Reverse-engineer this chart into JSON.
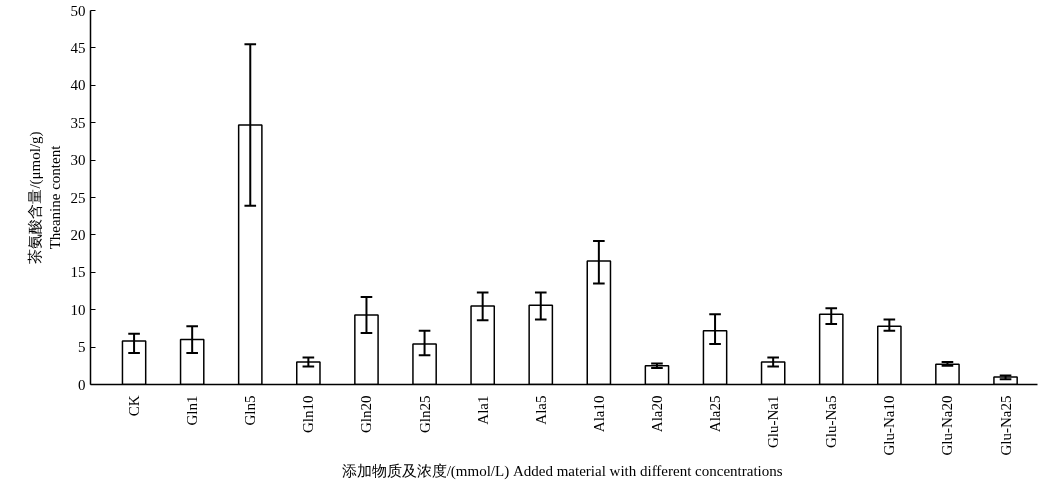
{
  "chart_data": {
    "type": "bar",
    "xlabel": "添加物质及浓度/(mmol/L)  Added material with different concentrations",
    "ylabel": "茶氨酸含量/(μmol/g)\nTheanine content",
    "categories": [
      "CK",
      "Gln1",
      "Gln5",
      "Gln10",
      "Gln20",
      "Gln25",
      "Ala1",
      "Ala5",
      "Ala10",
      "Ala20",
      "Ala25",
      "Glu-Na1",
      "Glu-Na5",
      "Glu-Na10",
      "Glu-Na20",
      "Glu-Na25"
    ],
    "values": [
      5.8,
      6.0,
      34.7,
      3.0,
      9.3,
      5.4,
      10.5,
      10.6,
      16.5,
      2.5,
      7.2,
      3.0,
      9.4,
      7.8,
      2.7,
      1.0
    ],
    "errors": [
      [
        4.2,
        6.8
      ],
      [
        4.2,
        7.8
      ],
      [
        23.9,
        45.5
      ],
      [
        2.4,
        3.6
      ],
      [
        6.9,
        11.7
      ],
      [
        3.9,
        7.2
      ],
      [
        8.6,
        12.3
      ],
      [
        8.7,
        12.3
      ],
      [
        13.5,
        19.2
      ],
      [
        2.2,
        2.8
      ],
      [
        5.4,
        9.4
      ],
      [
        2.4,
        3.6
      ],
      [
        8.1,
        10.2
      ],
      [
        7.2,
        8.7
      ],
      [
        2.5,
        3.0
      ],
      [
        0.7,
        1.2
      ]
    ],
    "color": "#ffffff",
    "ylim": [
      0,
      50
    ],
    "yticks": [
      0,
      5,
      10,
      15,
      20,
      25,
      30,
      35,
      40,
      45,
      50
    ],
    "grid": false
  }
}
